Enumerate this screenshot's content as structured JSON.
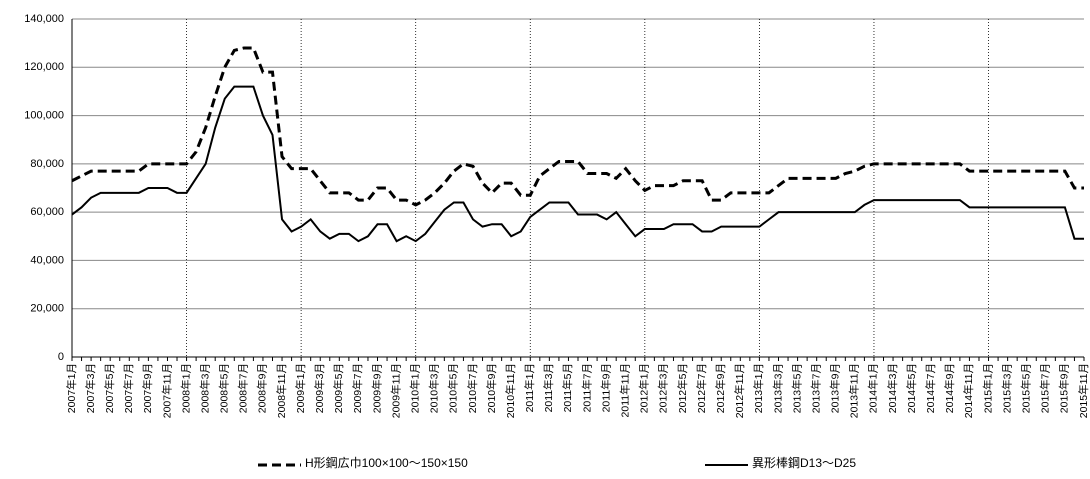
{
  "chart_data": {
    "type": "line",
    "categories": [
      "2007年1月",
      null,
      "2007年3月",
      null,
      "2007年5月",
      null,
      "2007年7月",
      null,
      "2007年9月",
      null,
      "2007年11月",
      null,
      "2008年1月",
      null,
      "2008年3月",
      null,
      "2008年5月",
      null,
      "2008年7月",
      null,
      "2008年9月",
      null,
      "2008年11月",
      null,
      "2009年1月",
      null,
      "2009年3月",
      null,
      "2009年5月",
      null,
      "2009年7月",
      null,
      "2009年9月",
      null,
      "2009年11月",
      null,
      "2010年1月",
      null,
      "2010年3月",
      null,
      "2010年5月",
      null,
      "2010年7月",
      null,
      "2010年9月",
      null,
      "2010年11月",
      null,
      "2011年1月",
      null,
      "2011年3月",
      null,
      "2011年5月",
      null,
      "2011年7月",
      null,
      "2011年9月",
      null,
      "2011年11月",
      null,
      "2012年1月",
      null,
      "2012年3月",
      null,
      "2012年5月",
      null,
      "2012年7月",
      null,
      "2012年9月",
      null,
      "2012年11月",
      null,
      "2013年1月",
      null,
      "2013年3月",
      null,
      "2013年5月",
      null,
      "2013年7月",
      null,
      "2013年9月",
      null,
      "2013年11月",
      null,
      "2014年1月",
      null,
      "2014年3月",
      null,
      "2014年5月",
      null,
      "2014年7月",
      null,
      "2014年9月",
      null,
      "2014年11月",
      null,
      "2015年1月",
      null,
      "2015年3月",
      null,
      "2015年5月",
      null,
      "2015年7月",
      null,
      "2015年9月",
      null,
      "2015年11月"
    ],
    "series": [
      {
        "name": "H形鋼広巾100×100～150×150",
        "color": "#000000",
        "dash": true,
        "values": [
          73000,
          75000,
          77000,
          77000,
          77000,
          77000,
          77000,
          77000,
          80000,
          80000,
          80000,
          80000,
          80000,
          85000,
          95000,
          108000,
          120000,
          127000,
          128000,
          128000,
          118000,
          118000,
          83000,
          78000,
          78000,
          78000,
          73000,
          68000,
          68000,
          68000,
          65000,
          65000,
          70000,
          70000,
          65000,
          65000,
          63000,
          65000,
          68000,
          72000,
          77000,
          80000,
          79000,
          72000,
          68000,
          72000,
          72000,
          67000,
          67000,
          75000,
          78000,
          81000,
          81000,
          81000,
          76000,
          76000,
          76000,
          74000,
          78000,
          73000,
          69000,
          71000,
          71000,
          71000,
          73000,
          73000,
          73000,
          65000,
          65000,
          68000,
          68000,
          68000,
          68000,
          68000,
          71000,
          74000,
          74000,
          74000,
          74000,
          74000,
          74000,
          76000,
          77000,
          79000,
          80000,
          80000,
          80000,
          80000,
          80000,
          80000,
          80000,
          80000,
          80000,
          80000,
          77000,
          77000,
          77000,
          77000,
          77000,
          77000,
          77000,
          77000,
          77000,
          77000,
          77000,
          70000,
          70000
        ]
      },
      {
        "name": "異形棒鋼D13～D25",
        "color": "#000000",
        "dash": false,
        "values": [
          59000,
          62000,
          66000,
          68000,
          68000,
          68000,
          68000,
          68000,
          70000,
          70000,
          70000,
          68000,
          68000,
          74000,
          80000,
          95000,
          107000,
          112000,
          112000,
          112000,
          100000,
          92000,
          57000,
          52000,
          54000,
          57000,
          52000,
          49000,
          51000,
          51000,
          48000,
          50000,
          55000,
          55000,
          48000,
          50000,
          48000,
          51000,
          56000,
          61000,
          64000,
          64000,
          57000,
          54000,
          55000,
          55000,
          50000,
          52000,
          58000,
          61000,
          64000,
          64000,
          64000,
          59000,
          59000,
          59000,
          57000,
          60000,
          55000,
          50000,
          53000,
          53000,
          53000,
          55000,
          55000,
          55000,
          52000,
          52000,
          54000,
          54000,
          54000,
          54000,
          54000,
          57000,
          60000,
          60000,
          60000,
          60000,
          60000,
          60000,
          60000,
          60000,
          60000,
          63000,
          65000,
          65000,
          65000,
          65000,
          65000,
          65000,
          65000,
          65000,
          65000,
          65000,
          62000,
          62000,
          62000,
          62000,
          62000,
          62000,
          62000,
          62000,
          62000,
          62000,
          62000,
          49000,
          49000
        ]
      }
    ],
    "ylim": [
      0,
      140000
    ],
    "yticks": [
      0,
      {
        "value": 20000,
        "label": "20,000"
      },
      {
        "value": 40000,
        "label": "40,000"
      },
      {
        "value": 60000,
        "label": "60,000"
      },
      {
        "value": 80000,
        "label": "80,000"
      },
      {
        "value": 100000,
        "label": "100,000"
      },
      {
        "value": 120000,
        "label": "120,000"
      },
      {
        "value": 140000,
        "label": "140,000"
      }
    ],
    "grid": true
  }
}
